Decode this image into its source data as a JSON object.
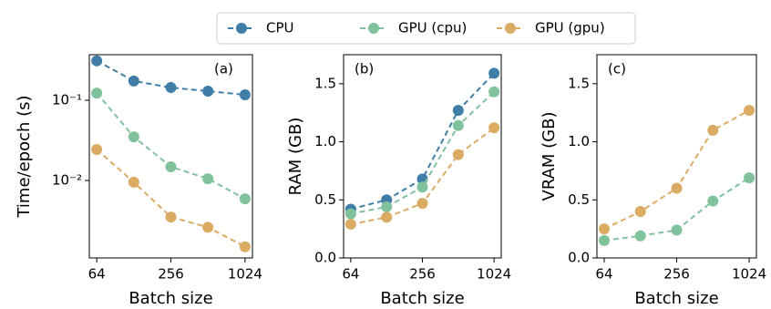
{
  "chart_data": [
    {
      "type": "line",
      "annotation": "(a)",
      "ylabel": "Time/epoch (s)",
      "xlabel": "Batch size",
      "xscale": "log",
      "yscale": "log",
      "x": [
        64,
        128,
        256,
        512,
        1024
      ],
      "xlim": [
        55.7,
        1176
      ],
      "xticks": [
        64,
        256,
        1024
      ],
      "ylim": [
        0.00108,
        0.37
      ],
      "yticks": [
        {
          "value": 0.1,
          "label": "10⁻¹"
        },
        {
          "value": 0.01,
          "label": "10⁻²"
        }
      ],
      "series": [
        {
          "name": "CPU",
          "color": "#3f7ea6",
          "values": [
            0.31,
            0.174,
            0.144,
            0.13,
            0.117
          ]
        },
        {
          "name": "GPU (cpu)",
          "color": "#7fc29b",
          "values": [
            0.123,
            0.035,
            0.0148,
            0.0105,
            0.0059
          ]
        },
        {
          "name": "GPU (gpu)",
          "color": "#dbab63",
          "values": [
            0.0243,
            0.0095,
            0.0035,
            0.0026,
            0.00149
          ]
        }
      ]
    },
    {
      "type": "line",
      "annotation": "(b)",
      "ylabel": "RAM (GB)",
      "xlabel": "Batch size",
      "xscale": "log",
      "x": [
        64,
        128,
        256,
        512,
        1024
      ],
      "xlim": [
        55.7,
        1176
      ],
      "xticks": [
        64,
        256,
        1024
      ],
      "ylim": [
        0,
        1.75
      ],
      "yticks": [
        {
          "value": 0,
          "label": "0.0"
        },
        0.5,
        {
          "value": 1,
          "label": "1.0"
        },
        1.5
      ],
      "series": [
        {
          "color": "#3f7ea6",
          "values": [
            0.42,
            0.5,
            0.68,
            1.27,
            1.59
          ]
        },
        {
          "color": "#7fc29b",
          "values": [
            0.38,
            0.44,
            0.61,
            1.14,
            1.43
          ]
        },
        {
          "color": "#dbab63",
          "values": [
            0.29,
            0.35,
            0.47,
            0.89,
            1.12
          ]
        }
      ]
    },
    {
      "type": "line",
      "annotation": "(c)",
      "ylabel": "VRAM (GB)",
      "xlabel": "Batch size",
      "xscale": "log",
      "x": [
        64,
        128,
        256,
        512,
        1024
      ],
      "xlim": [
        55.7,
        1176
      ],
      "xticks": [
        64,
        256,
        1024
      ],
      "ylim": [
        0,
        1.75
      ],
      "yticks": [
        {
          "value": 0,
          "label": "0.0"
        },
        0.5,
        {
          "value": 1,
          "label": "1.0"
        },
        1.5
      ],
      "series": [
        {
          "color": "#7fc29b",
          "values": [
            0.15,
            0.19,
            0.24,
            0.49,
            0.69
          ]
        },
        {
          "color": "#dbab63",
          "values": [
            0.25,
            0.4,
            0.6,
            1.1,
            1.27
          ]
        }
      ]
    }
  ]
}
